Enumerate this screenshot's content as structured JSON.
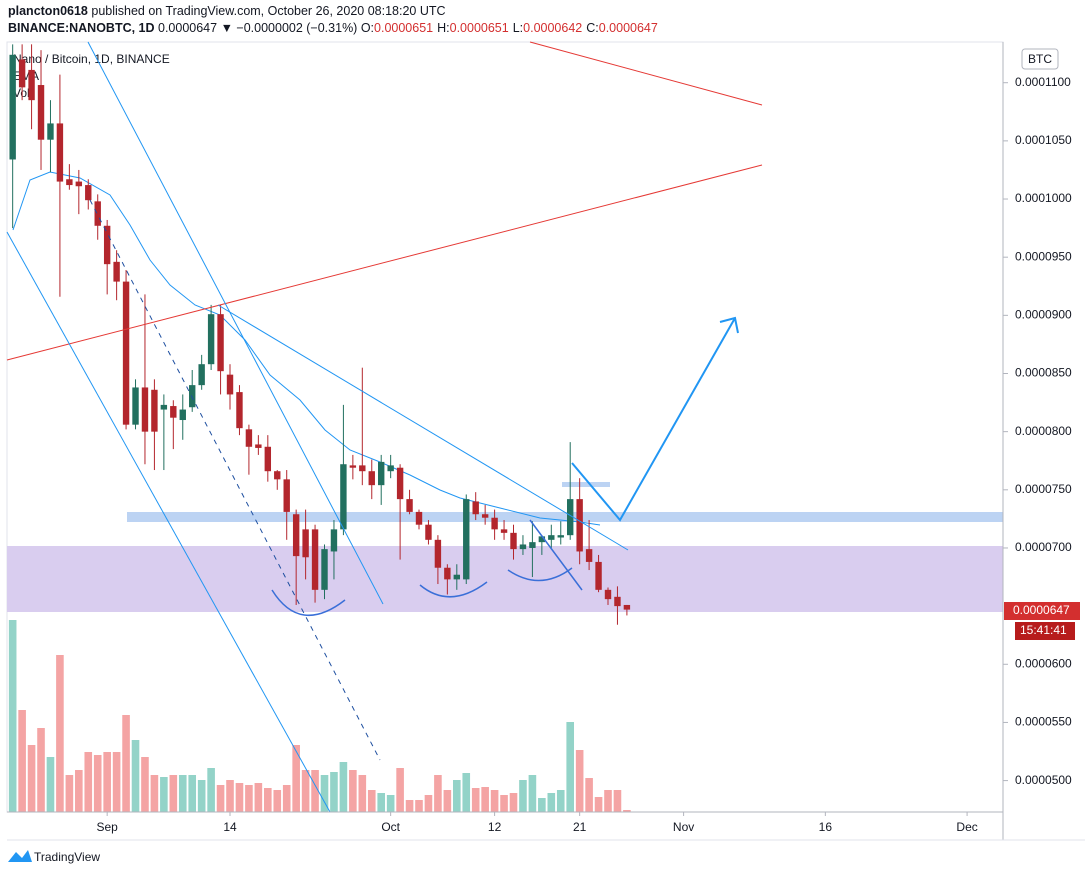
{
  "header": {
    "author": "plancton0618",
    "published": " published on TradingView.com, October 26, 2020 08:18:20 UTC",
    "symbol": "BINANCE:NANOBTC, 1D ",
    "change": " ▼ −0.0000002 (−0.31%) ",
    "ohlc_labels": [
      "O:",
      "H:",
      "L:",
      "C:"
    ]
  },
  "legend": {
    "title": "Nano / Bitcoin, 1D, BINANCE",
    "ema": "EMA",
    "vol": "Vol"
  },
  "currency": "BTC",
  "countdown": "15:41:41",
  "brand": "TradingView",
  "chart_data": {
    "type": "candlestick",
    "open": [
      0.0001034,
      0.000112,
      0.0001111,
      0.0001098,
      0.0001051,
      0.0001065,
      0.0001017,
      0.0001015,
      0.0001012,
      9.98e-05,
      9.77e-05,
      9.46e-05,
      9.29e-05,
      8.06e-05,
      8.38e-05,
      8.36e-05,
      8.19e-05,
      8.22e-05,
      8.1e-05,
      8.21e-05,
      8.4e-05,
      8.58e-05,
      9.01e-05,
      8.49e-05,
      8.34e-05,
      8.02e-05,
      7.89e-05,
      7.87e-05,
      7.66e-05,
      7.59e-05,
      7.29e-05,
      7.16e-05,
      7.16e-05,
      6.64e-05,
      6.97e-05,
      7.16e-05,
      7.71e-05,
      7.71e-05,
      7.66e-05,
      7.54e-05,
      7.66e-05,
      7.69e-05,
      7.42e-05,
      7.31e-05,
      7.2e-05,
      7.07e-05,
      6.83e-05,
      6.73e-05,
      6.73e-05,
      7.4e-05,
      7.29e-05,
      7.26e-05,
      7.16e-05,
      7.13e-05,
      6.99e-05,
      7e-05,
      7.05e-05,
      7.07e-05,
      7.09e-05,
      7.11e-05,
      7.42e-05,
      6.99e-05,
      6.88e-05,
      6.64e-05,
      6.58e-05,
      6.51e-05
    ],
    "high": [
      0.0001133,
      0.0001133,
      0.0001133,
      0.0001128,
      0.0001085,
      0.0001107,
      0.000103,
      0.0001025,
      0.0001017,
      0.0001004,
      9.82e-05,
      9.56e-05,
      9.39e-05,
      8.45e-05,
      9.18e-05,
      8.45e-05,
      8.32e-05,
      8.27e-05,
      8.32e-05,
      8.53e-05,
      8.66e-05,
      9.09e-05,
      9.09e-05,
      8.58e-05,
      8.4e-05,
      8.06e-05,
      7.97e-05,
      7.97e-05,
      7.67e-05,
      7.67e-05,
      7.33e-05,
      7.33e-05,
      7.2e-05,
      7.03e-05,
      7.24e-05,
      8.23e-05,
      7.8e-05,
      8.55e-05,
      7.76e-05,
      7.8e-05,
      7.8e-05,
      7.72e-05,
      7.5e-05,
      7.33e-05,
      7.24e-05,
      7.11e-05,
      6.86e-05,
      6.86e-05,
      7.46e-05,
      7.48e-05,
      7.37e-05,
      7.33e-05,
      7.24e-05,
      7.2e-05,
      7.11e-05,
      7.23e-05,
      7.11e-05,
      7.2e-05,
      7.23e-05,
      7.91e-05,
      7.6e-05,
      7.24e-05,
      6.94e-05,
      6.66e-05,
      6.67e-05,
      6.51e-05
    ],
    "low": [
      9.75e-05,
      0.0001085,
      0.000106,
      0.0001025,
      0.0001023,
      9.16e-05,
      0.0001008,
      9.87e-05,
      9.91e-05,
      9.65e-05,
      9.18e-05,
      9.13e-05,
      8.02e-05,
      8.02e-05,
      7.72e-05,
      7.67e-05,
      7.67e-05,
      7.85e-05,
      7.93e-05,
      8.17e-05,
      8.36e-05,
      8.53e-05,
      8.32e-05,
      8.19e-05,
      7.97e-05,
      7.63e-05,
      7.8e-05,
      7.57e-05,
      7.5e-05,
      7.07e-05,
      6.51e-05,
      6.73e-05,
      6.53e-05,
      6.56e-05,
      6.73e-05,
      7.11e-05,
      7.59e-05,
      7.54e-05,
      7.42e-05,
      7.37e-05,
      7.6e-05,
      6.9e-05,
      7.29e-05,
      7.16e-05,
      7.03e-05,
      6.69e-05,
      6.6e-05,
      6.64e-05,
      6.69e-05,
      7.24e-05,
      7.2e-05,
      7.07e-05,
      7.07e-05,
      6.9e-05,
      6.94e-05,
      6.75e-05,
      6.94e-05,
      7e-05,
      7.03e-05,
      7.07e-05,
      6.86e-05,
      6.81e-05,
      6.62e-05,
      6.51e-05,
      6.34e-05,
      6.42e-05
    ],
    "close": [
      0.0001124,
      0.0001096,
      0.0001085,
      0.0001051,
      0.0001065,
      0.0001015,
      0.0001012,
      0.0001011,
      9.99e-05,
      9.77e-05,
      9.44e-05,
      9.29e-05,
      8.06e-05,
      8.38e-05,
      8e-05,
      8e-05,
      8.23e-05,
      8.12e-05,
      8.19e-05,
      8.4e-05,
      8.58e-05,
      9.01e-05,
      8.52e-05,
      8.32e-05,
      8.03e-05,
      7.87e-05,
      7.86e-05,
      7.66e-05,
      7.59e-05,
      7.31e-05,
      6.93e-05,
      6.92e-05,
      6.64e-05,
      6.99e-05,
      7.16e-05,
      7.72e-05,
      7.69e-05,
      7.66e-05,
      7.54e-05,
      7.74e-05,
      7.71e-05,
      7.42e-05,
      7.31e-05,
      7.2e-05,
      7.07e-05,
      6.83e-05,
      6.73e-05,
      6.77e-05,
      7.42e-05,
      7.29e-05,
      7.26e-05,
      7.16e-05,
      7.13e-05,
      6.99e-05,
      7.03e-05,
      7.05e-05,
      7.1e-05,
      7.11e-05,
      7.11e-05,
      7.42e-05,
      6.97e-05,
      6.88e-05,
      6.64e-05,
      6.56e-05,
      6.5e-05,
      6.47e-05
    ],
    "volume": [
      192,
      102,
      67,
      84,
      55,
      157,
      37,
      42,
      60,
      57,
      60,
      60,
      97,
      72,
      55,
      37,
      35,
      37,
      37,
      37,
      32,
      44,
      27,
      32,
      29,
      27,
      29,
      24,
      22,
      27,
      67,
      42,
      42,
      37,
      40,
      50,
      42,
      37,
      22,
      19,
      17,
      44,
      12,
      12,
      17,
      37,
      22,
      32,
      39,
      24,
      25,
      22,
      17,
      19,
      32,
      37,
      14,
      19,
      22,
      90,
      62,
      34,
      15,
      22,
      22,
      2
    ],
    "up_color": "#22705f",
    "down_color": "#b3262d",
    "volume_up_color": "#93d3c8",
    "volume_down_color": "#f4a4a4",
    "xlim": [
      -0.6,
      104.8
    ],
    "xticks": [
      {
        "value": 10,
        "label": "Sep"
      },
      {
        "value": 23,
        "label": "14"
      },
      {
        "value": 40,
        "label": "Oct"
      },
      {
        "value": 51,
        "label": "12"
      },
      {
        "value": 60,
        "label": "21"
      },
      {
        "value": 71,
        "label": "Nov"
      },
      {
        "value": 86,
        "label": "16"
      },
      {
        "value": 101,
        "label": "Dec"
      }
    ],
    "ylim": [
      4.73e-05,
      0.0001135
    ],
    "yticks": [
      {
        "value": 0.00011,
        "label": "0.0001100"
      },
      {
        "value": 0.000105,
        "label": "0.0001050"
      },
      {
        "value": 0.0001,
        "label": "0.0001000"
      },
      {
        "value": 9.5e-05,
        "label": "0.0000950"
      },
      {
        "value": 9e-05,
        "label": "0.0000900"
      },
      {
        "value": 8.5e-05,
        "label": "0.0000850"
      },
      {
        "value": 8e-05,
        "label": "0.0000800"
      },
      {
        "value": 7.5e-05,
        "label": "0.0000750"
      },
      {
        "value": 7e-05,
        "label": "0.0000700"
      },
      {
        "value": 6e-05,
        "label": "0.0000600"
      },
      {
        "value": 5.5e-05,
        "label": "0.0000550"
      },
      {
        "value": 5e-05,
        "label": "0.0000500"
      }
    ]
  }
}
